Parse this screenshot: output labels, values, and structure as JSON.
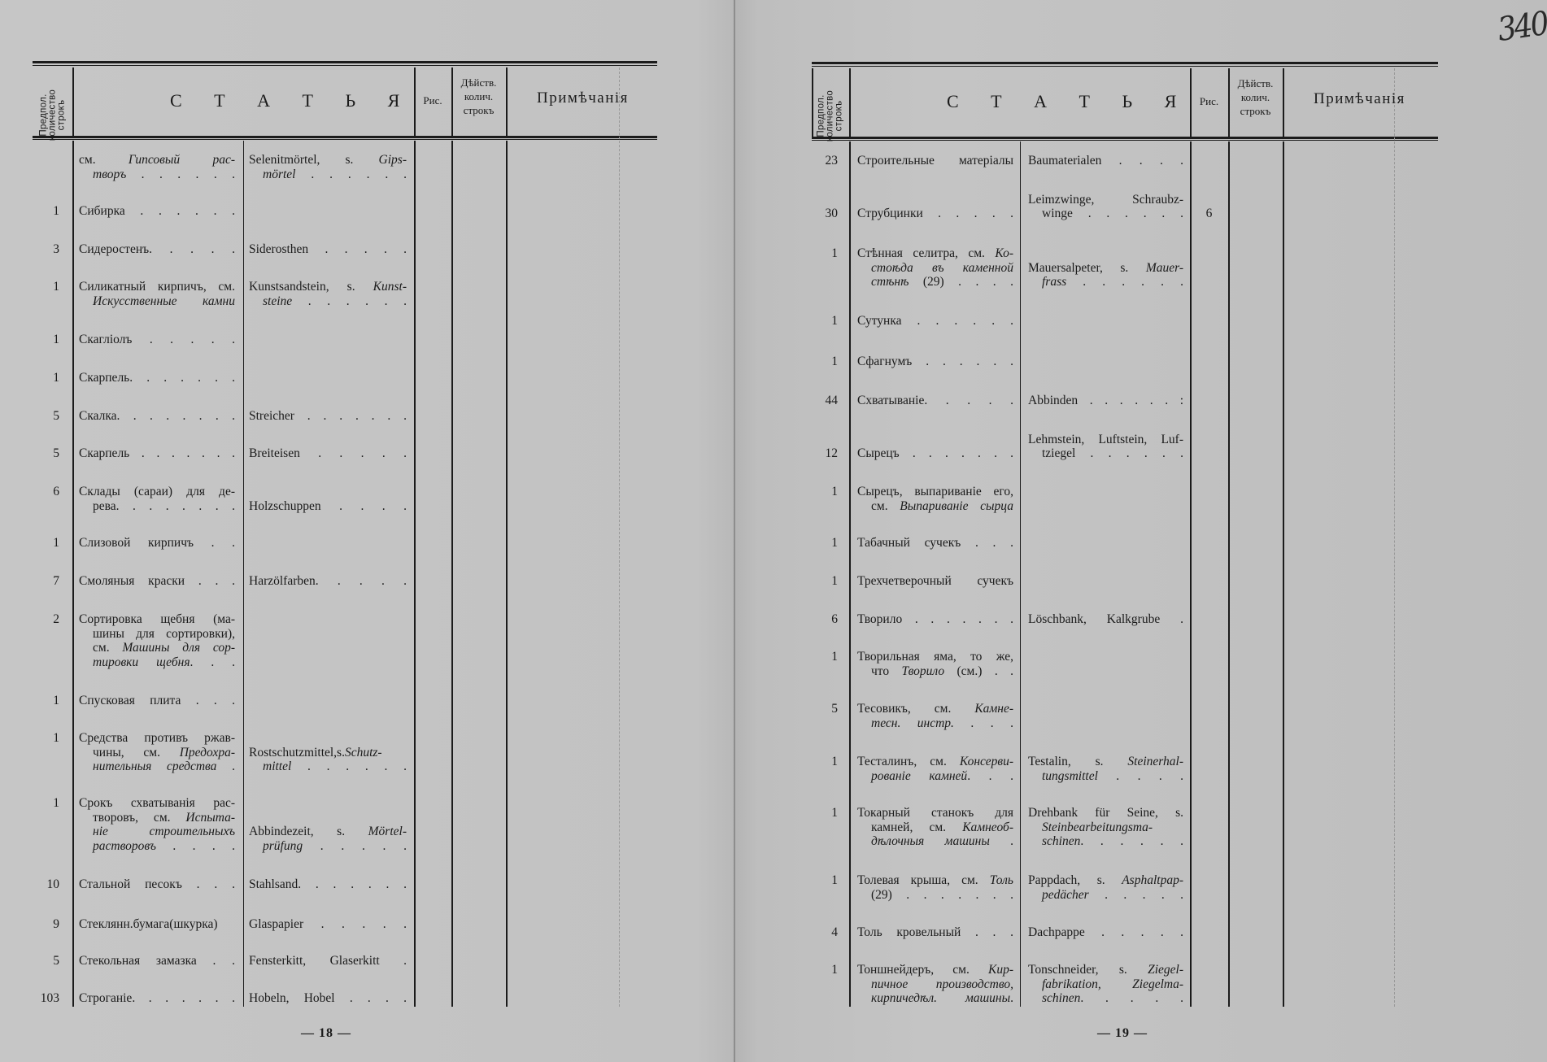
{
  "handwritten_folio": "340",
  "header": {
    "count_col": [
      "Предпол.",
      "количество",
      "строкъ"
    ],
    "article": "С Т А Т Ь Я",
    "figure": "Рис.",
    "actual_count": [
      "Дѣйств.",
      "колич.",
      "строкъ"
    ],
    "notes": "Примѣчанія"
  },
  "left": {
    "page_number": "— 18 —",
    "rows": [
      {
        "num": "",
        "ru": [
          [
            "см. ",
            {
              "t": "Гипсовый рас-"
            }
          ],
          [
            {
              "t": "творъ"
            },
            " . . . . . ."
          ]
        ],
        "de": [
          [
            "Selenitmörtel, s. ",
            {
              "t": "Gips-"
            }
          ],
          [
            {
              "t": "mörtel"
            },
            " . . . . . ."
          ]
        ]
      },
      {
        "num": "1",
        "ru": [
          "Сибирка . . . . . ."
        ],
        "de": []
      },
      {
        "num": "3",
        "ru": [
          "Сидеростенъ. . . . ."
        ],
        "de": [
          "Siderosthen . . . . ."
        ]
      },
      {
        "num": "1",
        "ru": [
          "Силикатный кирпичъ, см.",
          [
            {
              "t": "Искусственные камни"
            }
          ]
        ],
        "de": [
          [
            "Kunstsandstein, s. ",
            {
              "t": "Kunst-"
            }
          ],
          [
            {
              "t": "steine"
            },
            " . . . . . ."
          ]
        ]
      },
      {
        "num": "1",
        "ru": [
          "Скагліолъ . . . . ."
        ],
        "de": []
      },
      {
        "num": "1",
        "ru": [
          "Скарпель. . . . . . ."
        ],
        "de": []
      },
      {
        "num": "5",
        "ru": [
          "Скалка. . . . . . . ."
        ],
        "de": [
          "Streicher . . . . . . ."
        ]
      },
      {
        "num": "5",
        "ru": [
          "Скарпель . . . . . . ."
        ],
        "de": [
          "Breiteisen . . . . ."
        ]
      },
      {
        "num": "6",
        "ru": [
          "Склады (сараи) для де-",
          "рева. . . . . . . ."
        ],
        "de": [
          "Holzschuppen . . . ."
        ]
      },
      {
        "num": "1",
        "ru": [
          "Слизовой кирпичъ . ."
        ],
        "de": []
      },
      {
        "num": "7",
        "ru": [
          "Смоляныя краски . . ."
        ],
        "de": [
          "Harzölfarben. . . . ."
        ]
      },
      {
        "num": "2",
        "ru": [
          "Сортировка щебня (ма-",
          "шины для сортировки),",
          [
            "см. ",
            {
              "t": "Машины для сор-"
            }
          ],
          [
            {
              "t": "тировки щебня"
            },
            ". . ."
          ]
        ],
        "de": []
      },
      {
        "num": "1",
        "ru": [
          "Спусковая плита . . ."
        ],
        "de": []
      },
      {
        "num": "1",
        "ru": [
          "Средства противъ ржав-",
          [
            "чины, см. ",
            {
              "t": "Предохра-"
            }
          ],
          [
            {
              "t": "нительныя средства"
            },
            " ."
          ]
        ],
        "de": [
          [
            "Rostschutzmittel,s.",
            {
              "t": "Schutz-"
            }
          ],
          [
            {
              "t": "mittel"
            },
            " . . . . . ."
          ]
        ]
      },
      {
        "num": "1",
        "ru": [
          "Срокъ схватыванія рас-",
          [
            "творовъ, см. ",
            {
              "t": "Испыта-"
            }
          ],
          [
            {
              "t": "ніе строительныхъ"
            }
          ],
          [
            {
              "t": "растворовъ"
            },
            " . . . ."
          ]
        ],
        "de": [
          [
            "Abbindezeit, s. ",
            {
              "t": "Mörtel-"
            }
          ],
          [
            {
              "t": "prüfung"
            },
            " . . . . ."
          ]
        ]
      },
      {
        "num": "10",
        "ru": [
          "Стальной песокъ . . ."
        ],
        "de": [
          "Stahlsand. . . . . . ."
        ]
      },
      {
        "num": "9",
        "ru": [
          "Стеклянн.бумага(шкурка)"
        ],
        "de": [
          "Glaspapier . . . . ."
        ]
      },
      {
        "num": "5",
        "ru": [
          "Стекольная замазка . ."
        ],
        "de": [
          "Fensterkitt, Glaserkitt ."
        ]
      },
      {
        "num": "103",
        "ru": [
          "Строганіе. . . . . . ."
        ],
        "de": [
          "Hobeln, Hobel . . . ."
        ]
      }
    ]
  },
  "right": {
    "page_number": "— 19 —",
    "rows": [
      {
        "num": "23",
        "ru": [
          "Строительные матеріалы"
        ],
        "de": [
          "Baumaterialen . . . ."
        ]
      },
      {
        "num": "30",
        "ru": [
          "Струбцинки . . . . ."
        ],
        "de": [
          "Leimzwinge, Schraubz-",
          "winge . . . . . ."
        ],
        "ris": "6"
      },
      {
        "num": "1",
        "ru": [
          [
            "Стѣнная селитра, см. ",
            {
              "t": "Ко-"
            }
          ],
          [
            {
              "t": "стоѣда въ каменной"
            }
          ],
          [
            {
              "t": "стѣнѣ"
            },
            " (29) . . . ."
          ]
        ],
        "de": [
          [
            "Mauersalpeter, s. ",
            {
              "t": "Mauer-"
            }
          ],
          [
            {
              "t": "frass"
            },
            " . . . . . ."
          ]
        ]
      },
      {
        "num": "1",
        "ru": [
          "Сутунка . . . . . ."
        ],
        "de": []
      },
      {
        "num": "1",
        "ru": [
          "Сфагнумъ . . . . . ."
        ],
        "de": []
      },
      {
        "num": "44",
        "ru": [
          "Схватываніе. . . . ."
        ],
        "de": [
          "Abbinden . . . . . . :"
        ]
      },
      {
        "num": "12",
        "ru": [
          "Сырецъ . . . . . . ."
        ],
        "de": [
          "Lehmstein, Luftstein, Luf-",
          "tziegel . . . . . ."
        ]
      },
      {
        "num": "1",
        "ru": [
          "Сырецъ, выпариваніе его,",
          [
            "см. ",
            {
              "t": "Выпариваніе сырца"
            }
          ]
        ],
        "de": []
      },
      {
        "num": "1",
        "ru": [
          "Табачный сучекъ . . ."
        ],
        "de": []
      },
      {
        "num": "1",
        "ru": [
          "Трехчетверочный сучекъ"
        ],
        "de": []
      },
      {
        "num": "6",
        "ru": [
          "Творило . . . . . . ."
        ],
        "de": [
          "Löschbank, Kalkgrube ."
        ]
      },
      {
        "num": "1",
        "ru": [
          "Творильная яма, то же,",
          [
            "что ",
            {
              "t": "Творило"
            },
            " (см.) . ."
          ]
        ],
        "de": []
      },
      {
        "num": "5",
        "ru": [
          [
            "Тесовикъ, см. ",
            {
              "t": "Камне-"
            }
          ],
          [
            {
              "t": "тесн. инстр."
            },
            " . . ."
          ]
        ],
        "de": []
      },
      {
        "num": "1",
        "ru": [
          [
            "Тесталинъ, см. ",
            {
              "t": "Консерви-"
            }
          ],
          [
            {
              "t": "рованіе камней"
            },
            ". . ."
          ]
        ],
        "de": [
          [
            "Testalin, s. ",
            {
              "t": "Steinerhal-"
            }
          ],
          [
            {
              "t": "tungsmittel"
            },
            " . . . ."
          ]
        ]
      },
      {
        "num": "1",
        "ru": [
          "Токарный станокъ для",
          [
            "камней, см. ",
            {
              "t": "Камнеоб-"
            }
          ],
          [
            {
              "t": "дѣлочныя машины"
            },
            " ."
          ]
        ],
        "de": [
          "Drehbank für Seine, s.",
          [
            {
              "t": "Steinbearbeitungsma-"
            }
          ],
          [
            {
              "t": "schinen"
            },
            ". . . . . ."
          ]
        ]
      },
      {
        "num": "1",
        "ru": [
          [
            "Толевая крыша, см. ",
            {
              "t": "Толь"
            }
          ],
          "(29) . . . . . . ."
        ],
        "de": [
          [
            "Pappdach, s. ",
            {
              "t": "Asphaltpap-"
            }
          ],
          [
            {
              "t": "pedächer"
            },
            " . . . . ."
          ]
        ]
      },
      {
        "num": "4",
        "ru": [
          "Толь кровельный . . ."
        ],
        "de": [
          "Dachpappe . . . . ."
        ]
      },
      {
        "num": "1",
        "ru": [
          [
            "Тоншнейдеръ, см. ",
            {
              "t": "Кир-"
            }
          ],
          [
            {
              "t": "пичное производство,"
            }
          ],
          [
            {
              "t": "кирпичедѣл. машины"
            },
            "."
          ]
        ],
        "de": [
          [
            "Tonschneider, s. ",
            {
              "t": "Ziegel-"
            }
          ],
          [
            {
              "t": "fabrikation, Ziegelma-"
            }
          ],
          [
            {
              "t": "schinen"
            },
            ". . . . ."
          ]
        ]
      }
    ]
  }
}
